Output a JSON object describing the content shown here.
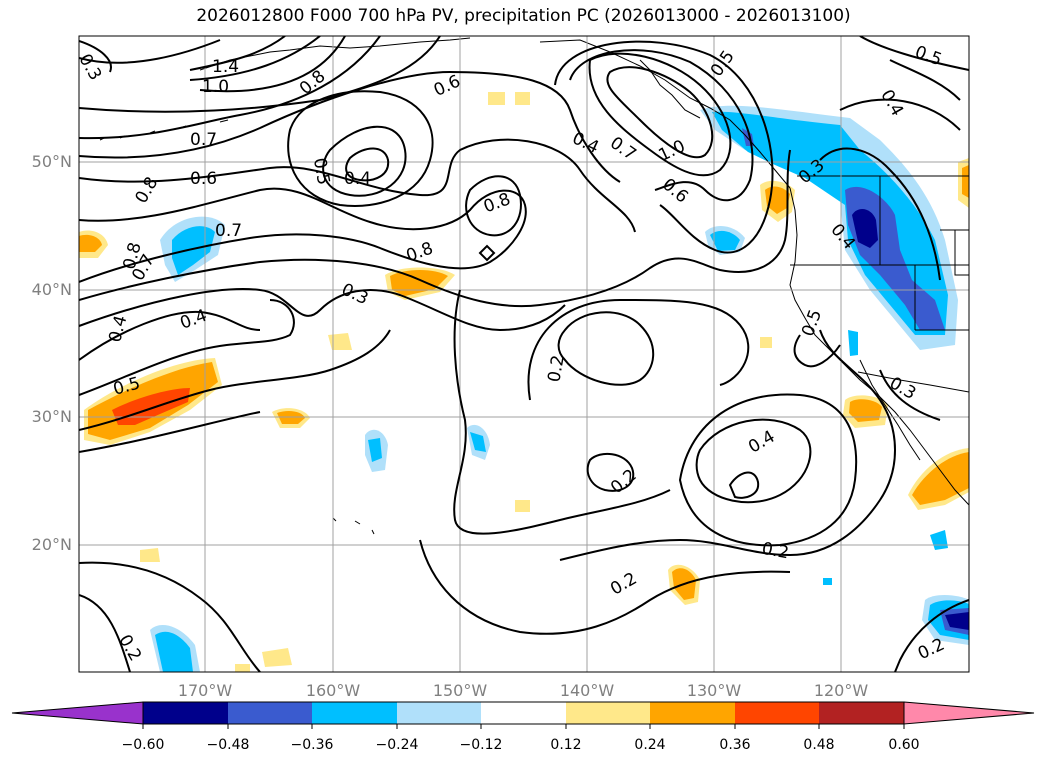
{
  "title": "2026012800 F000 700 hPa PV, precipitation PC (2026013000 - 2026013100)",
  "latitude_labels": [
    "50°N",
    "40°N",
    "30°N",
    "20°N"
  ],
  "longitude_labels": [
    "170°W",
    "160°W",
    "150°W",
    "140°W",
    "130°W",
    "120°W"
  ],
  "colorbar": {
    "tick_labels": [
      "−0.60",
      "−0.48",
      "−0.36",
      "−0.24",
      "−0.12",
      "0.12",
      "0.24",
      "0.36",
      "0.48",
      "0.60"
    ],
    "colors": [
      "#9932cc",
      "#00008b",
      "#3a5bcf",
      "#00bfff",
      "#b0e0fa",
      "#ffffff",
      "#ffe88a",
      "#ffa500",
      "#ff4500",
      "#b22222",
      "#ff88aa"
    ]
  },
  "contour_labels": [
    "1.4",
    "1.0",
    "0.7",
    "0.6",
    "0.8",
    "0.5",
    "0.4",
    "0.6",
    "0.8",
    "0.8",
    "0.7",
    "0.4",
    "0.7",
    "1.0",
    "0.6",
    "0.5",
    "0.3",
    "0.8",
    "0.7",
    "0.8",
    "0.4",
    "0.4",
    "0.5",
    "0.3",
    "0.2",
    "0.2",
    "0.4",
    "0.2",
    "0.2",
    "0.2",
    "0.5",
    "0.4",
    "0.3",
    "0.4",
    "0.2",
    "0.5",
    "0.3"
  ],
  "map_features": {
    "coastlines": "coastline",
    "gridlines": "grid",
    "contours": "pv-contours"
  }
}
